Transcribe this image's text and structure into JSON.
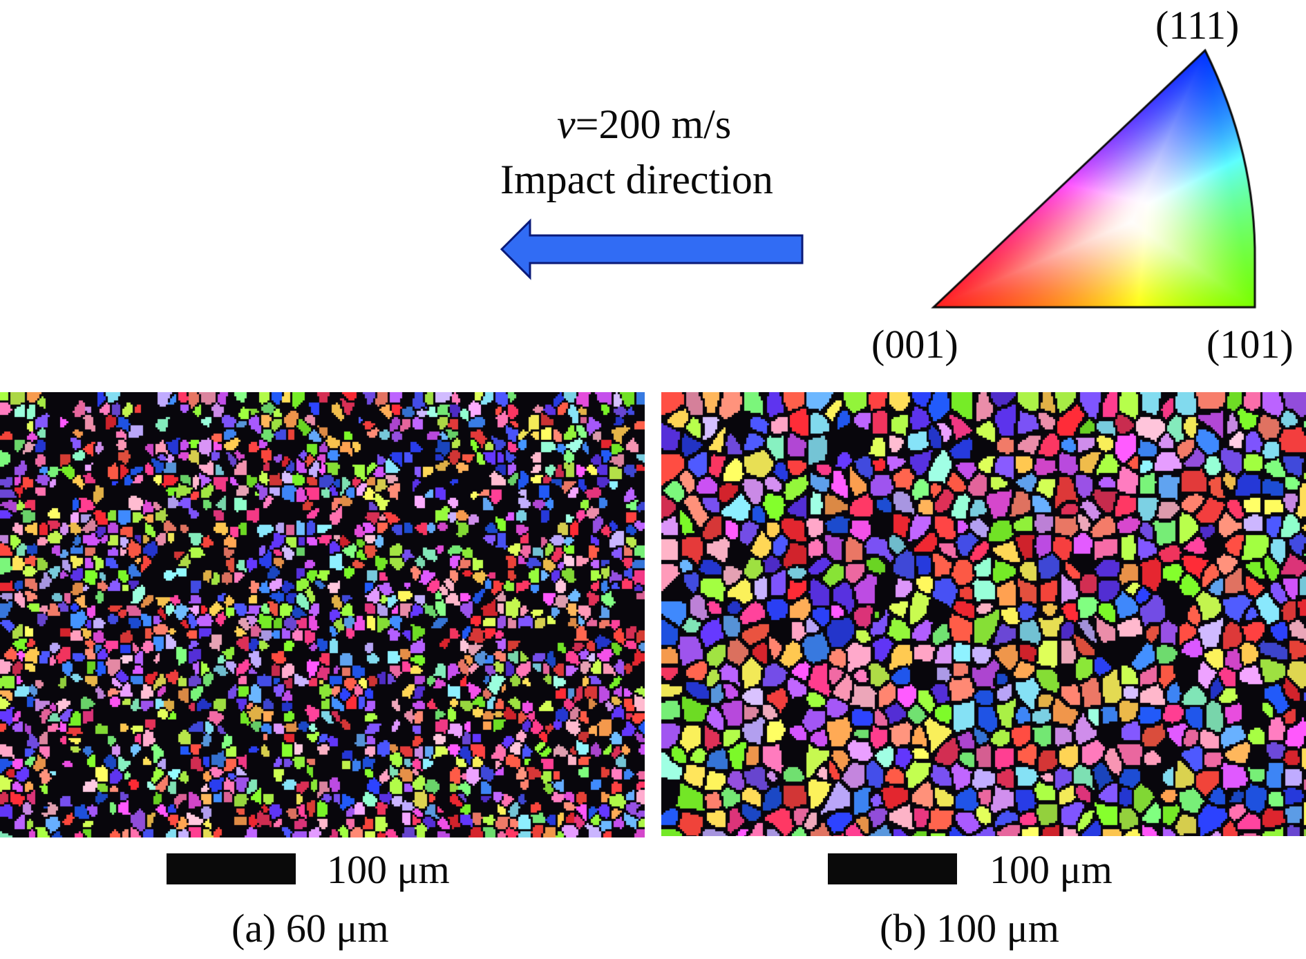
{
  "figure": {
    "velocity": {
      "symbol": "v",
      "value_text": "=200 m/s"
    },
    "impact_direction_label": "Impact direction",
    "arrow": {
      "direction": "left",
      "fill": "#316cf4",
      "stroke": "#0a1a78"
    },
    "ipf_legend": {
      "poles": {
        "top": "(111)",
        "bottom_left": "(001)",
        "bottom_right": "(101)"
      },
      "colors": {
        "001": "#ff2020",
        "101": "#70f000",
        "111": "#0030f0",
        "center": "#ffffff"
      }
    },
    "panels": [
      {
        "id": "a",
        "scale_bar_label": "100 μm",
        "caption": "(a) 60 μm",
        "grain_texture": "fine"
      },
      {
        "id": "b",
        "scale_bar_label": "100 μm",
        "caption": "(b) 100 μm",
        "grain_texture": "coarse"
      }
    ]
  }
}
